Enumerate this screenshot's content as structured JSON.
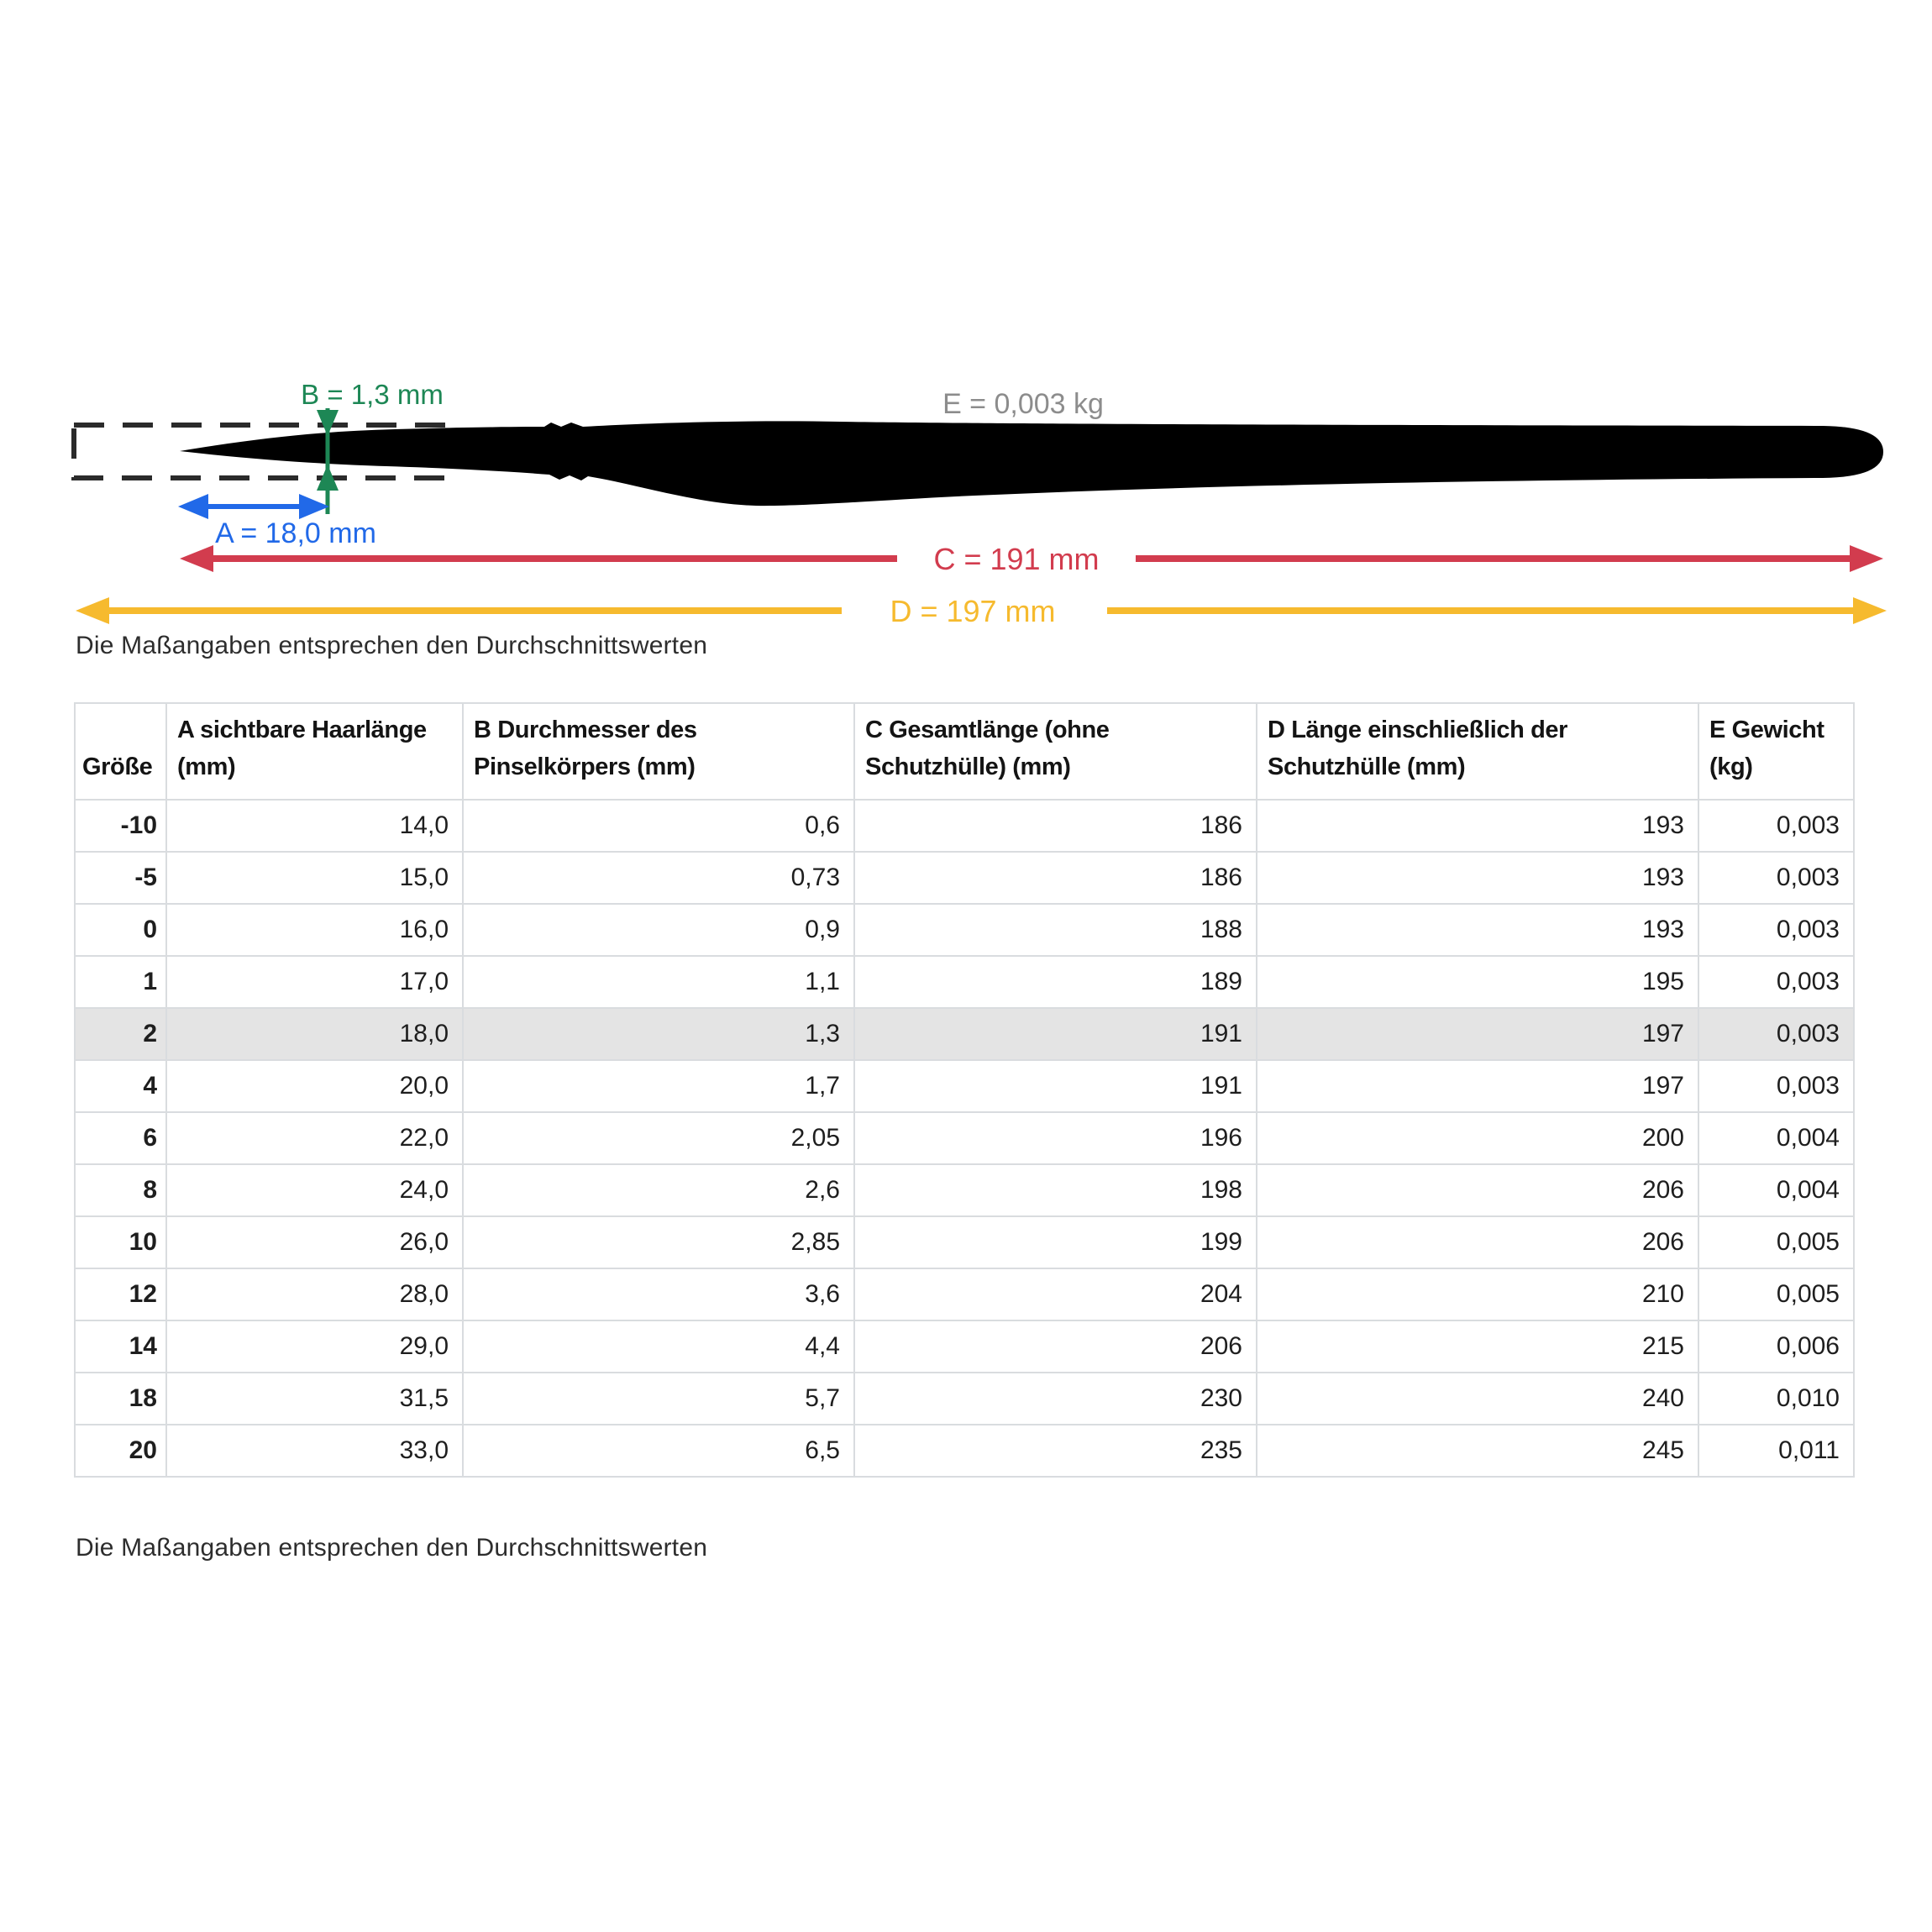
{
  "diagram": {
    "b_label": "B = 1,3 mm",
    "e_label": "E = 0,003 kg",
    "a_label": "A = 18,0 mm",
    "c_label": "C = 191 mm",
    "d_label": "D = 197 mm",
    "colors": {
      "a_blue": "#2169e8",
      "b_green": "#1d8755",
      "c_red": "#d23c4e",
      "d_yellow": "#f6ba2e",
      "e_gray": "#8c8c8c",
      "silhouette": "#000000"
    }
  },
  "captions": {
    "top": "Die Maßangaben entsprechen den Durchschnittswerten",
    "bottom": "Die Maßangaben entsprechen den Durchschnittswerten"
  },
  "table": {
    "column_headers": [
      {
        "lines": [
          "Größe"
        ]
      },
      {
        "lines": [
          "A sichtbare Haarlänge",
          "(mm)"
        ]
      },
      {
        "lines": [
          "B Durchmesser des",
          "Pinselkörpers (mm)"
        ]
      },
      {
        "lines": [
          "C Gesamtlänge (ohne",
          "Schutzhülle) (mm)"
        ]
      },
      {
        "lines": [
          "D Länge einschließlich der",
          "Schutzhülle (mm)"
        ]
      },
      {
        "lines": [
          "E Gewicht",
          "(kg)"
        ]
      }
    ],
    "rows": [
      [
        "-10",
        "14,0",
        "0,6",
        "186",
        "193",
        "0,003"
      ],
      [
        "-5",
        "15,0",
        "0,73",
        "186",
        "193",
        "0,003"
      ],
      [
        "0",
        "16,0",
        "0,9",
        "188",
        "193",
        "0,003"
      ],
      [
        "1",
        "17,0",
        "1,1",
        "189",
        "195",
        "0,003"
      ],
      [
        "2",
        "18,0",
        "1,3",
        "191",
        "197",
        "0,003"
      ],
      [
        "4",
        "20,0",
        "1,7",
        "191",
        "197",
        "0,003"
      ],
      [
        "6",
        "22,0",
        "2,05",
        "196",
        "200",
        "0,004"
      ],
      [
        "8",
        "24,0",
        "2,6",
        "198",
        "206",
        "0,004"
      ],
      [
        "10",
        "26,0",
        "2,85",
        "199",
        "206",
        "0,005"
      ],
      [
        "12",
        "28,0",
        "3,6",
        "204",
        "210",
        "0,005"
      ],
      [
        "14",
        "29,0",
        "4,4",
        "206",
        "215",
        "0,006"
      ],
      [
        "18",
        "31,5",
        "5,7",
        "230",
        "240",
        "0,010"
      ],
      [
        "20",
        "33,0",
        "6,5",
        "235",
        "245",
        "0,011"
      ]
    ],
    "highlighted_row": "2",
    "highlight_color": "#e4e4e4"
  }
}
